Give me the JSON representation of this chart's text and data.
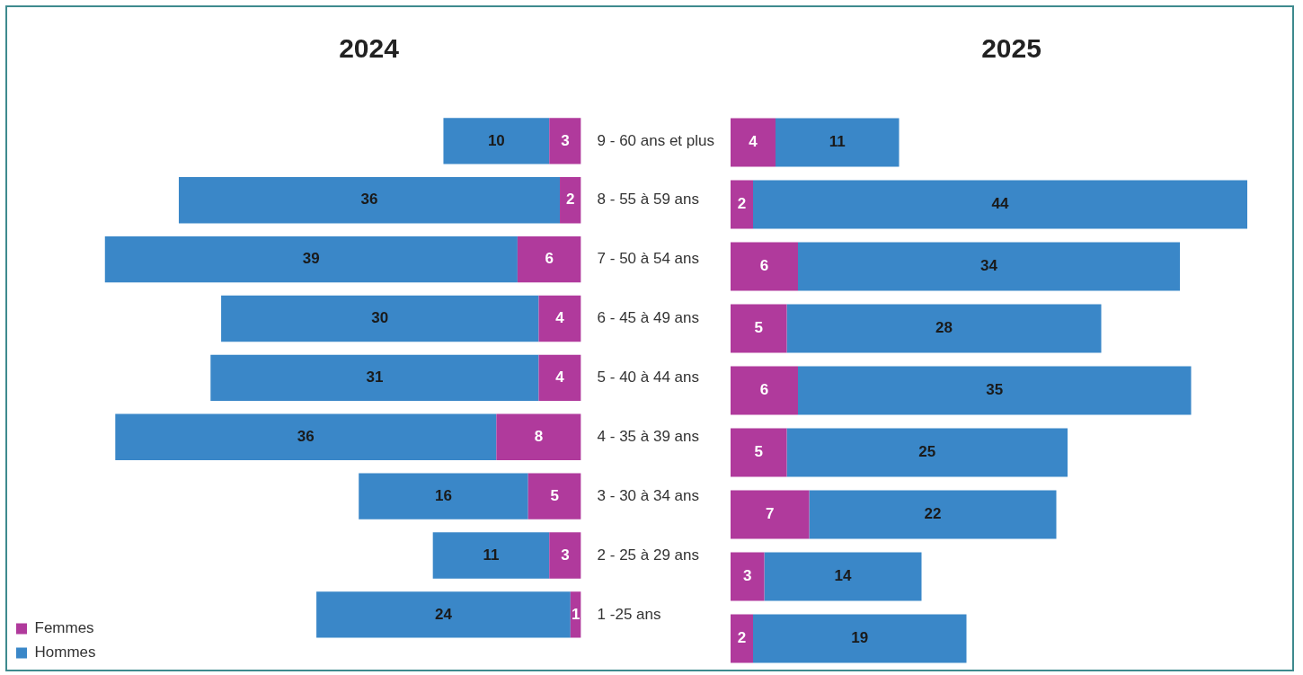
{
  "chart_data": [
    {
      "type": "bar",
      "title": "2024",
      "orientation": "horizontal",
      "stacked": true,
      "data_labels": true,
      "grid": false,
      "legend": "bottom left",
      "tick_labels": "y",
      "categories": [
        "9 - 60 ans et plus",
        "8 - 55 à 59 ans",
        "7 - 50 à 54 ans",
        "6 - 45 à 49 ans",
        "5 - 40 à 44 ans",
        "4 - 35 à 39 ans",
        "3 - 30 à 34 ans",
        "2 - 25 à 29 ans",
        "1 -25 ans"
      ],
      "series": [
        {
          "name": "Femmes",
          "color": "#b03a9c",
          "values": [
            3,
            2,
            6,
            4,
            4,
            8,
            5,
            3,
            1
          ]
        },
        {
          "name": "Hommes",
          "color": "#3a87c8",
          "values": [
            10,
            36,
            39,
            30,
            31,
            36,
            16,
            11,
            24
          ]
        }
      ]
    },
    {
      "type": "bar",
      "title": "2025",
      "orientation": "horizontal",
      "stacked": true,
      "data_labels": true,
      "grid": false,
      "legend": false,
      "tick_labels": false,
      "categories": [
        null,
        null,
        null,
        null,
        null,
        null,
        null,
        null,
        null
      ],
      "series": [
        {
          "color": "#b03a9c",
          "values": [
            4,
            2,
            6,
            5,
            6,
            5,
            7,
            3,
            2
          ]
        },
        {
          "color": "#3a87c8",
          "values": [
            11,
            44,
            34,
            28,
            35,
            25,
            22,
            14,
            19
          ]
        }
      ]
    }
  ]
}
